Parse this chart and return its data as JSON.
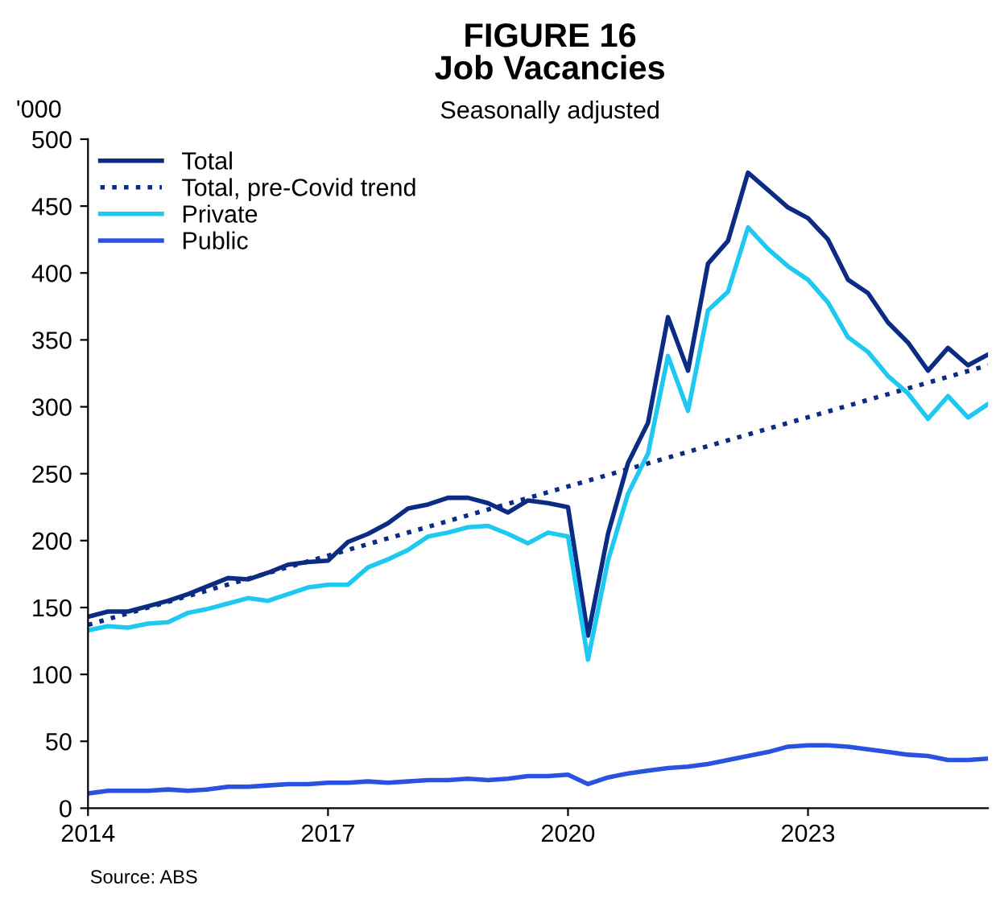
{
  "chart_data": {
    "type": "line",
    "title": "FIGURE 16\nJob Vacancies",
    "subtitle": "Seasonally adjusted",
    "ylabel": "'000",
    "annotations": [
      "Source: ABS"
    ],
    "xlim": [
      2014,
      2025.25
    ],
    "xticks": [
      2014,
      2017,
      2020,
      2023
    ],
    "ylim": [
      0,
      500
    ],
    "yticks": [
      0,
      50,
      100,
      150,
      200,
      250,
      300,
      350,
      400,
      450,
      500
    ],
    "grid": false,
    "legend": "top left",
    "marker": "none",
    "x": [
      2014.0,
      2014.25,
      2014.5,
      2014.75,
      2015.0,
      2015.25,
      2015.5,
      2015.75,
      2016.0,
      2016.25,
      2016.5,
      2016.75,
      2017.0,
      2017.25,
      2017.5,
      2017.75,
      2018.0,
      2018.25,
      2018.5,
      2018.75,
      2019.0,
      2019.25,
      2019.5,
      2019.75,
      2020.0,
      2020.25,
      2020.5,
      2020.75,
      2021.0,
      2021.25,
      2021.5,
      2021.75,
      2022.0,
      2022.25,
      2022.5,
      2022.75,
      2023.0,
      2023.25,
      2023.5,
      2023.75,
      2024.0,
      2024.25,
      2024.5,
      2024.75,
      2025.0,
      2025.25
    ],
    "series": [
      {
        "name": "Total",
        "color": "#0c2c84",
        "line_style": "solid",
        "values": [
          143,
          147,
          147,
          151,
          155,
          160,
          166,
          172,
          171,
          176,
          182,
          184,
          185,
          199,
          205,
          213,
          224,
          227,
          232,
          232,
          228,
          221,
          230,
          228,
          225,
          129,
          205,
          258,
          288,
          367,
          327,
          407,
          424,
          475,
          462,
          449,
          441,
          425,
          395,
          385,
          363,
          348,
          327,
          344,
          331,
          339
        ]
      },
      {
        "name": "Total, pre-Covid trend",
        "color": "#0c2c84",
        "line_style": "dotted",
        "x": [
          2014,
          2025.25
        ],
        "values": [
          137,
          331
        ]
      },
      {
        "name": "Private",
        "color": "#1ec8f0",
        "line_style": "solid",
        "values": [
          133,
          136,
          135,
          138,
          139,
          146,
          149,
          153,
          157,
          155,
          160,
          165,
          167,
          167,
          180,
          186,
          193,
          203,
          206,
          210,
          211,
          205,
          198,
          206,
          203,
          111,
          185,
          235,
          265,
          338,
          297,
          372,
          386,
          434,
          418,
          405,
          395,
          378,
          352,
          341,
          323,
          310,
          291,
          308,
          292,
          302
        ]
      },
      {
        "name": "Public",
        "color": "#2a52e0",
        "line_style": "solid",
        "values": [
          11,
          13,
          13,
          13,
          14,
          13,
          14,
          16,
          16,
          17,
          18,
          18,
          19,
          19,
          20,
          19,
          20,
          21,
          21,
          22,
          21,
          22,
          24,
          24,
          25,
          18,
          23,
          26,
          28,
          30,
          31,
          33,
          36,
          39,
          42,
          46,
          47,
          47,
          46,
          44,
          42,
          40,
          39,
          36,
          36,
          37
        ]
      }
    ]
  }
}
